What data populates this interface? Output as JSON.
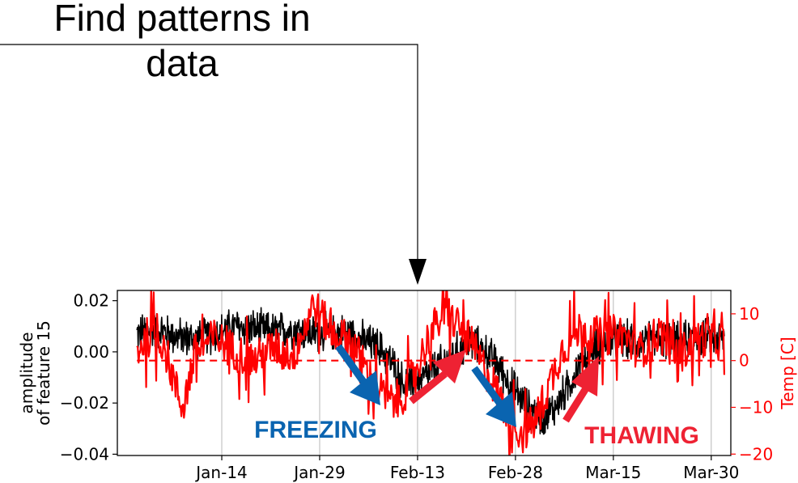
{
  "heading": {
    "line1": "Find patterns in",
    "line2": "data"
  },
  "chart_data": {
    "type": "line",
    "x_axis": {
      "type": "date",
      "tick_labels": [
        "Jan-14",
        "Jan-29",
        "Feb-13",
        "Feb-28",
        "Mar-15",
        "Mar-30"
      ],
      "grid": true
    },
    "y_left": {
      "label_line1": "amplitude",
      "label_line2": "of feature 15",
      "tick_labels": [
        "0.02",
        "0.00",
        "−0.02",
        "−0.04"
      ],
      "ticks": [
        0.02,
        0.0,
        -0.02,
        -0.04
      ],
      "ylim": [
        -0.0405,
        0.024
      ],
      "color": "#000000"
    },
    "y_right": {
      "label": "Temp [C]",
      "tick_labels": [
        "10",
        "0",
        "−10",
        "−20"
      ],
      "ticks": [
        10,
        0,
        -10,
        -20
      ],
      "ylim": [
        -20.3,
        15
      ],
      "color": "#ff0000"
    },
    "series": [
      {
        "axis": "left",
        "color": "#000000",
        "points": [
          [
            "2024-01-01",
            0.007
          ],
          [
            "2024-01-04",
            0.009
          ],
          [
            "2024-01-07",
            0.006
          ],
          [
            "2024-01-10",
            0.005
          ],
          [
            "2024-01-13",
            0.007
          ],
          [
            "2024-01-16",
            0.01
          ],
          [
            "2024-01-19",
            0.009
          ],
          [
            "2024-01-22",
            0.008
          ],
          [
            "2024-01-25",
            0.009
          ],
          [
            "2024-01-28",
            0.007
          ],
          [
            "2024-01-31",
            0.008
          ],
          [
            "2024-02-03",
            0.007
          ],
          [
            "2024-02-05",
            0.004
          ],
          [
            "2024-02-07",
            0.002
          ],
          [
            "2024-02-09",
            -0.004
          ],
          [
            "2024-02-11",
            -0.013
          ],
          [
            "2024-02-13",
            -0.012
          ],
          [
            "2024-02-15",
            -0.008
          ],
          [
            "2024-02-17",
            -0.004
          ],
          [
            "2024-02-19",
            0.0
          ],
          [
            "2024-02-21",
            0.004
          ],
          [
            "2024-02-23",
            0.001
          ],
          [
            "2024-02-25",
            -0.004
          ],
          [
            "2024-02-27",
            -0.012
          ],
          [
            "2024-03-01",
            -0.022
          ],
          [
            "2024-03-03",
            -0.026
          ],
          [
            "2024-03-05",
            -0.022
          ],
          [
            "2024-03-07",
            -0.014
          ],
          [
            "2024-03-09",
            -0.004
          ],
          [
            "2024-03-12",
            0.003
          ],
          [
            "2024-03-15",
            0.005
          ],
          [
            "2024-03-18",
            0.004
          ],
          [
            "2024-03-21",
            0.005
          ],
          [
            "2024-03-24",
            0.004
          ],
          [
            "2024-03-27",
            0.006
          ],
          [
            "2024-03-31",
            0.005
          ]
        ],
        "noise_band": 0.006
      },
      {
        "axis": "right",
        "color": "#ff0000",
        "points": [
          [
            "2024-01-01",
            2
          ],
          [
            "2024-01-03",
            6
          ],
          [
            "2024-01-05",
            4
          ],
          [
            "2024-01-07",
            -6
          ],
          [
            "2024-01-08",
            -10
          ],
          [
            "2024-01-10",
            2
          ],
          [
            "2024-01-13",
            5
          ],
          [
            "2024-01-16",
            2
          ],
          [
            "2024-01-19",
            0
          ],
          [
            "2024-01-22",
            3
          ],
          [
            "2024-01-25",
            1
          ],
          [
            "2024-01-28",
            12
          ],
          [
            "2024-01-31",
            6
          ],
          [
            "2024-02-03",
            4
          ],
          [
            "2024-02-05",
            -2
          ],
          [
            "2024-02-07",
            -6
          ],
          [
            "2024-02-09",
            -9
          ],
          [
            "2024-02-11",
            -7
          ],
          [
            "2024-02-13",
            -1
          ],
          [
            "2024-02-15",
            6
          ],
          [
            "2024-02-17",
            10
          ],
          [
            "2024-02-19",
            8
          ],
          [
            "2024-02-21",
            4
          ],
          [
            "2024-02-23",
            -1
          ],
          [
            "2024-02-25",
            -6
          ],
          [
            "2024-02-27",
            -12
          ],
          [
            "2024-02-29",
            -16
          ],
          [
            "2024-03-02",
            -13
          ],
          [
            "2024-03-04",
            -6
          ],
          [
            "2024-03-06",
            2
          ],
          [
            "2024-03-09",
            7
          ],
          [
            "2024-03-12",
            5
          ],
          [
            "2024-03-15",
            6
          ],
          [
            "2024-03-18",
            2
          ],
          [
            "2024-03-21",
            6
          ],
          [
            "2024-03-24",
            1
          ],
          [
            "2024-03-27",
            5
          ],
          [
            "2024-03-31",
            4
          ]
        ],
        "noise_band": 6
      },
      {
        "axis": "right",
        "color": "#ff0000",
        "style": "dashed",
        "points": [
          [
            "2024-01-01",
            0
          ],
          [
            "2024-03-31",
            0
          ]
        ]
      }
    ],
    "annotations": {
      "freezing": {
        "text": "FREEZING",
        "color": "#0a64b0"
      },
      "thawing": {
        "text": "THAWING",
        "color": "#ee2233"
      }
    }
  }
}
